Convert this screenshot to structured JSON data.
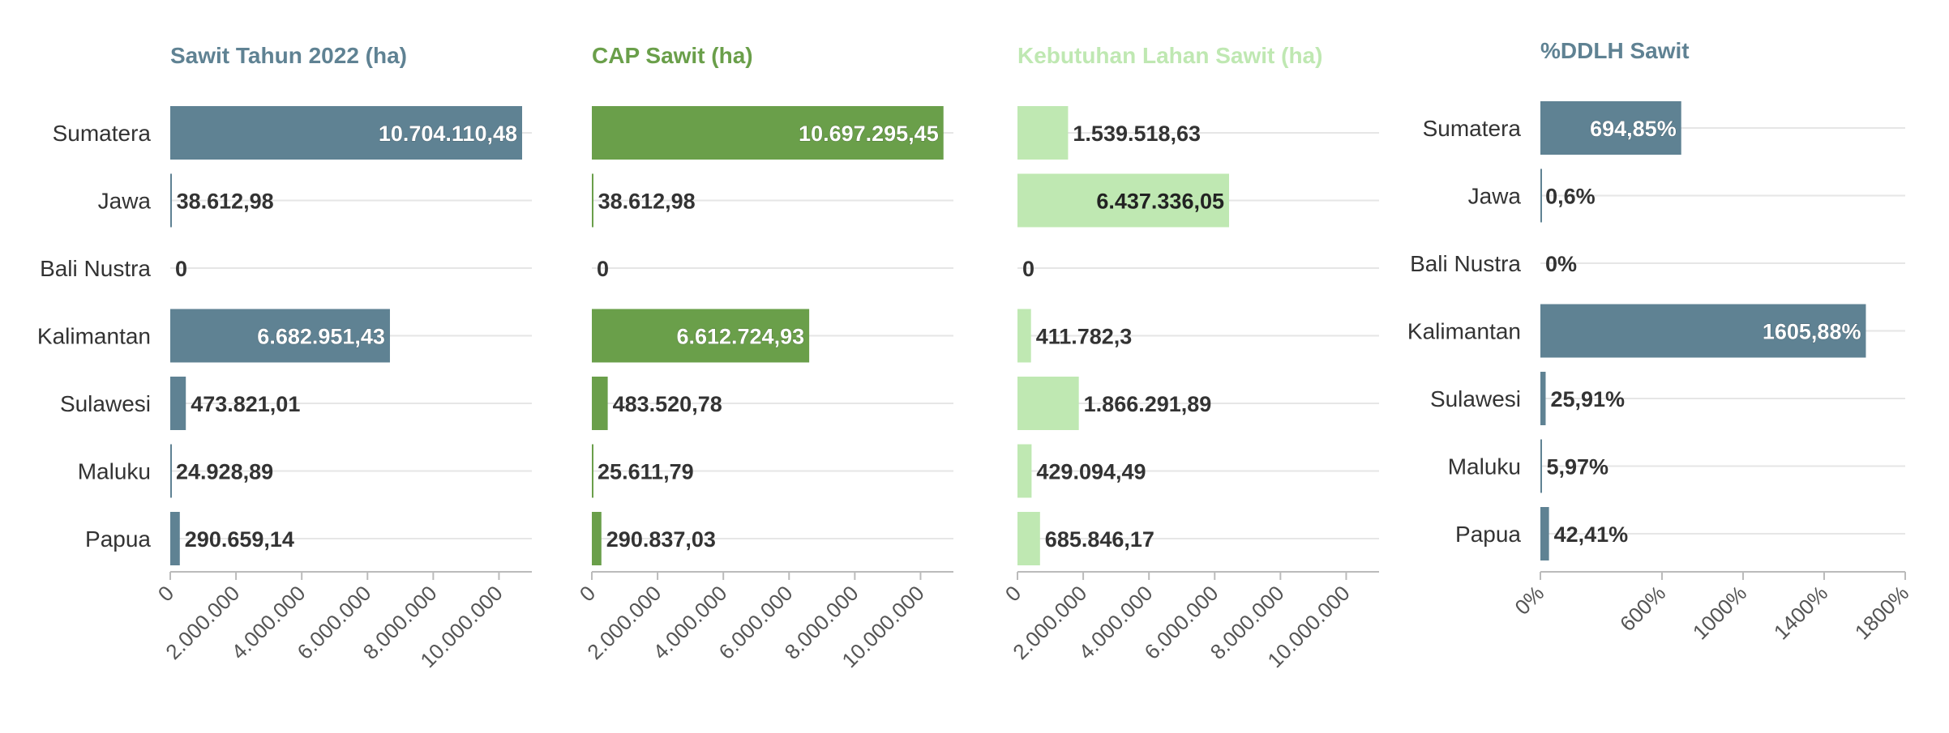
{
  "colors": {
    "panel1": "#5f8293",
    "panel2": "#6a9f4a",
    "panel3": "#bfe8b2",
    "panel4": "#5f8293",
    "text": "#333333",
    "grid": "#e6e6e6"
  },
  "chart_data": [
    {
      "type": "bar",
      "orientation": "horizontal",
      "title": "Sawit Tahun 2022 (ha)",
      "categories": [
        "Sumatera",
        "Jawa",
        "Bali Nustra",
        "Kalimantan",
        "Sulawesi",
        "Maluku",
        "Papua"
      ],
      "values": [
        10704110.48,
        38612.98,
        0,
        6682951.43,
        473821.01,
        24928.89,
        290659.14
      ],
      "value_labels": [
        "10.704.110,48",
        "38.612,98",
        "0",
        "6.682.951,43",
        "473.821,01",
        "24.928,89",
        "290.659,14"
      ],
      "xlim": [
        0,
        11000000
      ],
      "x_ticks": [
        0,
        2000000,
        4000000,
        6000000,
        8000000,
        10000000
      ],
      "x_tick_labels": [
        "0",
        "2.000.000",
        "4.000.000",
        "6.000.000",
        "8.000.000",
        "10.000.000"
      ],
      "show_category_labels": true,
      "grid": true
    },
    {
      "type": "bar",
      "orientation": "horizontal",
      "title": "CAP Sawit (ha)",
      "categories": [
        "Sumatera",
        "Jawa",
        "Bali Nustra",
        "Kalimantan",
        "Sulawesi",
        "Maluku",
        "Papua"
      ],
      "values": [
        10697295.45,
        38612.98,
        0,
        6612724.93,
        483520.78,
        25611.79,
        290837.03
      ],
      "value_labels": [
        "10.697.295,45",
        "38.612,98",
        "0",
        "6.612.724,93",
        "483.520,78",
        "25.611,79",
        "290.837,03"
      ],
      "xlim": [
        0,
        11000000
      ],
      "x_ticks": [
        0,
        2000000,
        4000000,
        6000000,
        8000000,
        10000000
      ],
      "x_tick_labels": [
        "0",
        "2.000.000",
        "4.000.000",
        "6.000.000",
        "8.000.000",
        "10.000.000"
      ],
      "show_category_labels": false,
      "grid": true
    },
    {
      "type": "bar",
      "orientation": "horizontal",
      "title": "Kebutuhan Lahan Sawit (ha)",
      "categories": [
        "Sumatera",
        "Jawa",
        "Bali Nustra",
        "Kalimantan",
        "Sulawesi",
        "Maluku",
        "Papua"
      ],
      "values": [
        1539518.63,
        6437336.05,
        0,
        411782.3,
        1866291.89,
        429094.49,
        685846.17
      ],
      "value_labels": [
        "1.539.518,63",
        "6.437.336,05",
        "0",
        "411.782,3",
        "1.866.291,89",
        "429.094,49",
        "685.846,17"
      ],
      "xlim": [
        0,
        11000000
      ],
      "x_ticks": [
        0,
        2000000,
        4000000,
        6000000,
        8000000,
        10000000
      ],
      "x_tick_labels": [
        "0",
        "2.000.000",
        "4.000.000",
        "6.000.000",
        "8.000.000",
        "10.000.000"
      ],
      "show_category_labels": false,
      "grid": true
    },
    {
      "type": "bar",
      "orientation": "horizontal",
      "title": "%DDLH Sawit",
      "categories": [
        "Sumatera",
        "Jawa",
        "Bali Nustra",
        "Kalimantan",
        "Sulawesi",
        "Maluku",
        "Papua"
      ],
      "values": [
        694.85,
        0.6,
        0,
        1605.88,
        25.91,
        5.97,
        42.41
      ],
      "value_labels": [
        "694,85%",
        "0,6%",
        "0%",
        "1605,88%",
        "25,91%",
        "5,97%",
        "42,41%"
      ],
      "xlim": [
        0,
        1800
      ],
      "x_ticks": [
        0,
        600,
        1000,
        1400,
        1800
      ],
      "x_tick_labels": [
        "0%",
        "600%",
        "1000%",
        "1400%",
        "1800%"
      ],
      "show_category_labels": true,
      "grid": true
    }
  ]
}
